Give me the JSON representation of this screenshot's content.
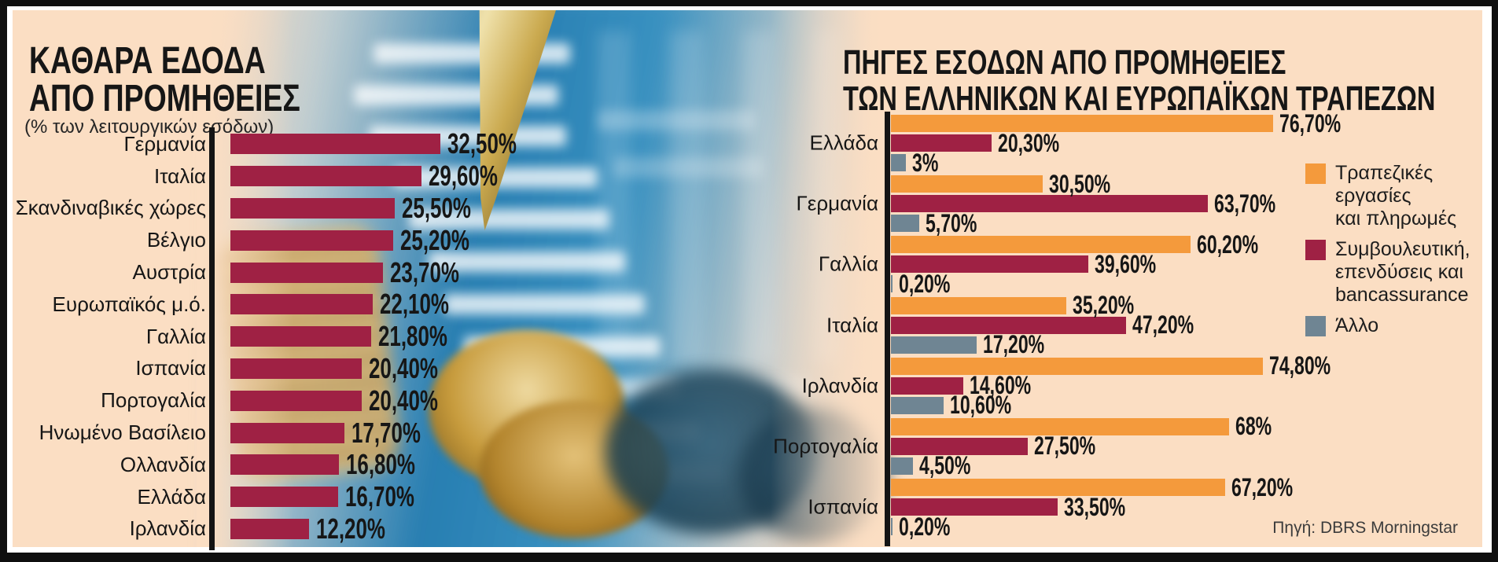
{
  "frame": {
    "outer_color": "#0f0f0f",
    "mat_color": "#ffffff",
    "panel_color": "#fbdec3"
  },
  "left_chart": {
    "title_lines": [
      "ΚΑΘΑΡΑ ΕΔΟΔΑ",
      "ΑΠΟ ΠΡΟΜΗΘΕΙΕΣ"
    ],
    "subtitle": "(% των λειτουργικών εσόδων)"
  },
  "right_chart": {
    "title_lines": [
      "ΠΗΓΕΣ ΕΣΟΔΩΝ ΑΠΟ ΠΡΟΜΗΘΕΙΕΣ",
      "ΤΩΝ ΕΛΛΗΝΙΚΩΝ ΚΑΙ ΕΥΡΩΠΑΪΚΩΝ ΤΡΑΠΕΖΩΝ"
    ],
    "legend_items": [
      {
        "color": "#f49a3c",
        "text": "Τραπεζικές\nεργασίες\nκαι πληρωμές"
      },
      {
        "color": "#9f2144",
        "text": "Συμβουλευτική,\nεπενδύσεις και\nbancassurance"
      },
      {
        "color": "#6f8593",
        "text": "Άλλο"
      }
    ],
    "source": "Πηγή: DBRS Morningstar"
  },
  "chart_data": [
    {
      "type": "bar",
      "orientation": "horizontal",
      "title": "ΚΑΘΑΡΑ ΕΔΟΔΑ ΑΠΟ ΠΡΟΜΗΘΕΙΕΣ",
      "subtitle": "(% των λειτουργικών εσόδων)",
      "categories": [
        "Γερμανία",
        "Ιταλία",
        "Σκανδιναβικές χώρες",
        "Βέλγιο",
        "Αυστρία",
        "Ευρωπαϊκός μ.ό.",
        "Γαλλία",
        "Ισπανία",
        "Πορτογαλία",
        "Ηνωμένο Βασίλειο",
        "Ολλανδία",
        "Ελλάδα",
        "Ιρλανδία"
      ],
      "values": [
        32.5,
        29.6,
        25.5,
        25.2,
        23.7,
        22.1,
        21.8,
        20.4,
        20.4,
        17.7,
        16.8,
        16.7,
        12.2
      ],
      "value_labels": [
        "32,50%",
        "29,60%",
        "25,50%",
        "25,20%",
        "23,70%",
        "22,10%",
        "21,80%",
        "20,40%",
        "20,40%",
        "17,70%",
        "16,80%",
        "16,70%",
        "12,20%"
      ],
      "bar_color": "#9f2144",
      "xlim": [
        0,
        35
      ],
      "grid": false,
      "legend": false
    },
    {
      "type": "bar",
      "orientation": "horizontal",
      "title": "ΠΗΓΕΣ ΕΣΟΔΩΝ ΑΠΟ ΠΡΟΜΗΘΕΙΕΣ ΤΩΝ ΕΛΛΗΝΙΚΩΝ ΚΑΙ ΕΥΡΩΠΑΪΚΩΝ ΤΡΑΠΕΖΩΝ",
      "categories": [
        "Ελλάδα",
        "Γερμανία",
        "Γαλλία",
        "Ιταλία",
        "Ιρλανδία",
        "Πορτογαλία",
        "Ισπανία"
      ],
      "series": [
        {
          "name": "Τραπεζικές εργασίες και πληρωμές",
          "color": "#f49a3c",
          "values": [
            76.7,
            30.5,
            60.2,
            35.2,
            74.8,
            68,
            67.2
          ],
          "value_labels": [
            "76,70%",
            "30,50%",
            "60,20%",
            "35,20%",
            "74,80%",
            "68%",
            "67,20%"
          ]
        },
        {
          "name": "Συμβουλευτική, επενδύσεις και bancassurance",
          "color": "#9f2144",
          "values": [
            20.3,
            63.7,
            39.6,
            47.2,
            14.6,
            27.5,
            33.5
          ],
          "value_labels": [
            "20,30%",
            "63,70%",
            "39,60%",
            "47,20%",
            "14,60%",
            "27,50%",
            "33,50%"
          ]
        },
        {
          "name": "Άλλο",
          "color": "#6f8593",
          "values": [
            3,
            5.7,
            0.2,
            17.2,
            10.6,
            4.5,
            0.2
          ],
          "value_labels": [
            "3%",
            "5,70%",
            "0,20%",
            "17,20%",
            "10,60%",
            "4,50%",
            "0,20%"
          ]
        }
      ],
      "xlim": [
        0,
        100
      ],
      "grid": false,
      "legend_position": "right",
      "source": "Πηγή: DBRS Morningstar"
    }
  ]
}
